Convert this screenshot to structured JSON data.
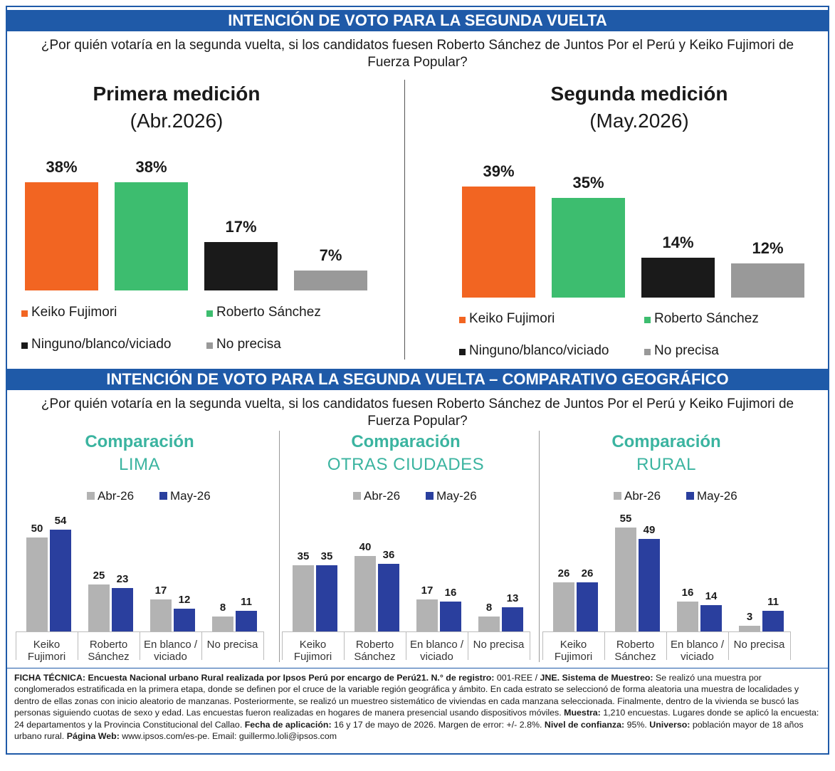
{
  "banners": [
    "INTENCIÓN DE VOTO PARA LA SEGUNDA VUELTA",
    "INTENCIÓN DE VOTO PARA LA SEGUNDA VUELTA – COMPARATIVO GEOGRÁFICO"
  ],
  "questions": [
    "¿Por quién votaría en la segunda vuelta, si los candidatos fuesen Roberto Sánchez de Juntos Por el Perú y Keiko Fujimori de Fuerza Popular?",
    "¿Por quién votaría en la segunda vuelta, si los candidatos fuesen Roberto Sánchez de Juntos Por el Perú y Keiko Fujimori de Fuerza Popular?"
  ],
  "chart_data": [
    {
      "type": "bar",
      "title": "Primera medición",
      "subtitle": "(Abr.2026)",
      "categories": [
        "Keiko Fujimori",
        "Roberto Sánchez",
        "Ninguno/blanco/viciado",
        "No precisa"
      ],
      "values": [
        38,
        38,
        17,
        7
      ],
      "value_labels": [
        "38%",
        "38%",
        "17%",
        "7%"
      ],
      "colors": [
        "#f26522",
        "#3dbd6f",
        "#1a1a1a",
        "#999999"
      ]
    },
    {
      "type": "bar",
      "title": "Segunda medición",
      "subtitle": "(May.2026)",
      "categories": [
        "Keiko Fujimori",
        "Roberto Sánchez",
        "Ninguno/blanco/viciado",
        "No precisa"
      ],
      "values": [
        39,
        35,
        14,
        12
      ],
      "value_labels": [
        "39%",
        "35%",
        "14%",
        "12%"
      ],
      "colors": [
        "#f26522",
        "#3dbd6f",
        "#1a1a1a",
        "#999999"
      ]
    },
    {
      "type": "grouped_bar",
      "title": "Comparación",
      "subtitle": "LIMA",
      "categories": [
        "Keiko Fujimori",
        "Roberto Sánchez",
        "En blanco / viciado",
        "No precisa"
      ],
      "series": [
        {
          "name": "Abr-26",
          "color": "#b3b3b3",
          "values": [
            50,
            25,
            17,
            8
          ]
        },
        {
          "name": "May-26",
          "color": "#2a3f9e",
          "values": [
            54,
            23,
            12,
            11
          ]
        }
      ]
    },
    {
      "type": "grouped_bar",
      "title": "Comparación",
      "subtitle": "OTRAS CIUDADES",
      "categories": [
        "Keiko Fujimori",
        "Roberto Sánchez",
        "En blanco / viciado",
        "No precisa"
      ],
      "series": [
        {
          "name": "Abr-26",
          "color": "#b3b3b3",
          "values": [
            35,
            40,
            17,
            8
          ]
        },
        {
          "name": "May-26",
          "color": "#2a3f9e",
          "values": [
            35,
            36,
            16,
            13
          ]
        }
      ]
    },
    {
      "type": "grouped_bar",
      "title": "Comparación",
      "subtitle": "RURAL",
      "categories": [
        "Keiko Fujimori",
        "Roberto Sánchez",
        "En blanco / viciado",
        "No precisa"
      ],
      "series": [
        {
          "name": "Abr-26",
          "color": "#b3b3b3",
          "values": [
            26,
            55,
            16,
            3
          ]
        },
        {
          "name": "May-26",
          "color": "#2a3f9e",
          "values": [
            26,
            49,
            14,
            11
          ]
        }
      ]
    }
  ],
  "footnote": [
    {
      "text": "FICHA TÉCNICA: Encuesta Nacional urbano Rural realizada por Ipsos Perú por encargo de Perú21. N.° de registro:",
      "bold": true
    },
    {
      "text": " 001-REE / "
    },
    {
      "text": "JNE. Sistema de Muestreo:",
      "bold": true
    },
    {
      "text": " Se realizó una muestra por conglomerados estratificada en la primera etapa, donde se definen por el cruce de la variable región geográfica y ámbito. En cada estrato se seleccionó de forma aleatoria una muestra de localidades y dentro de ellas zonas con inicio aleatorio de manzanas. Posteriormente, se realizó un muestreo sistemático de viviendas en cada manzana seleccionada. Finalmente, dentro de la vivienda se buscó las personas siguiendo cuotas de sexo y edad. Las encuestas fueron realizadas en hogares de manera presencial usando dispositivos móviles. "
    },
    {
      "text": "Muestra:",
      "bold": true
    },
    {
      "text": " 1,210 encuestas. Lugares donde se aplicó la encuesta: 24 departamentos y la Provincia Constitucional del Callao. "
    },
    {
      "text": "Fecha de aplicación:",
      "bold": true
    },
    {
      "text": " 16 y 17 de mayo de 2026. Margen de error: +/- 2.8%. "
    },
    {
      "text": "Nivel de confianza:",
      "bold": true
    },
    {
      "text": " 95%. "
    },
    {
      "text": "Universo:",
      "bold": true
    },
    {
      "text": " población mayor de 18 años urbano rural. "
    },
    {
      "text": "Página Web:",
      "bold": true
    },
    {
      "text": " www.ipsos.com/es-pe. Email: guillermo.loli@ipsos.com"
    }
  ]
}
